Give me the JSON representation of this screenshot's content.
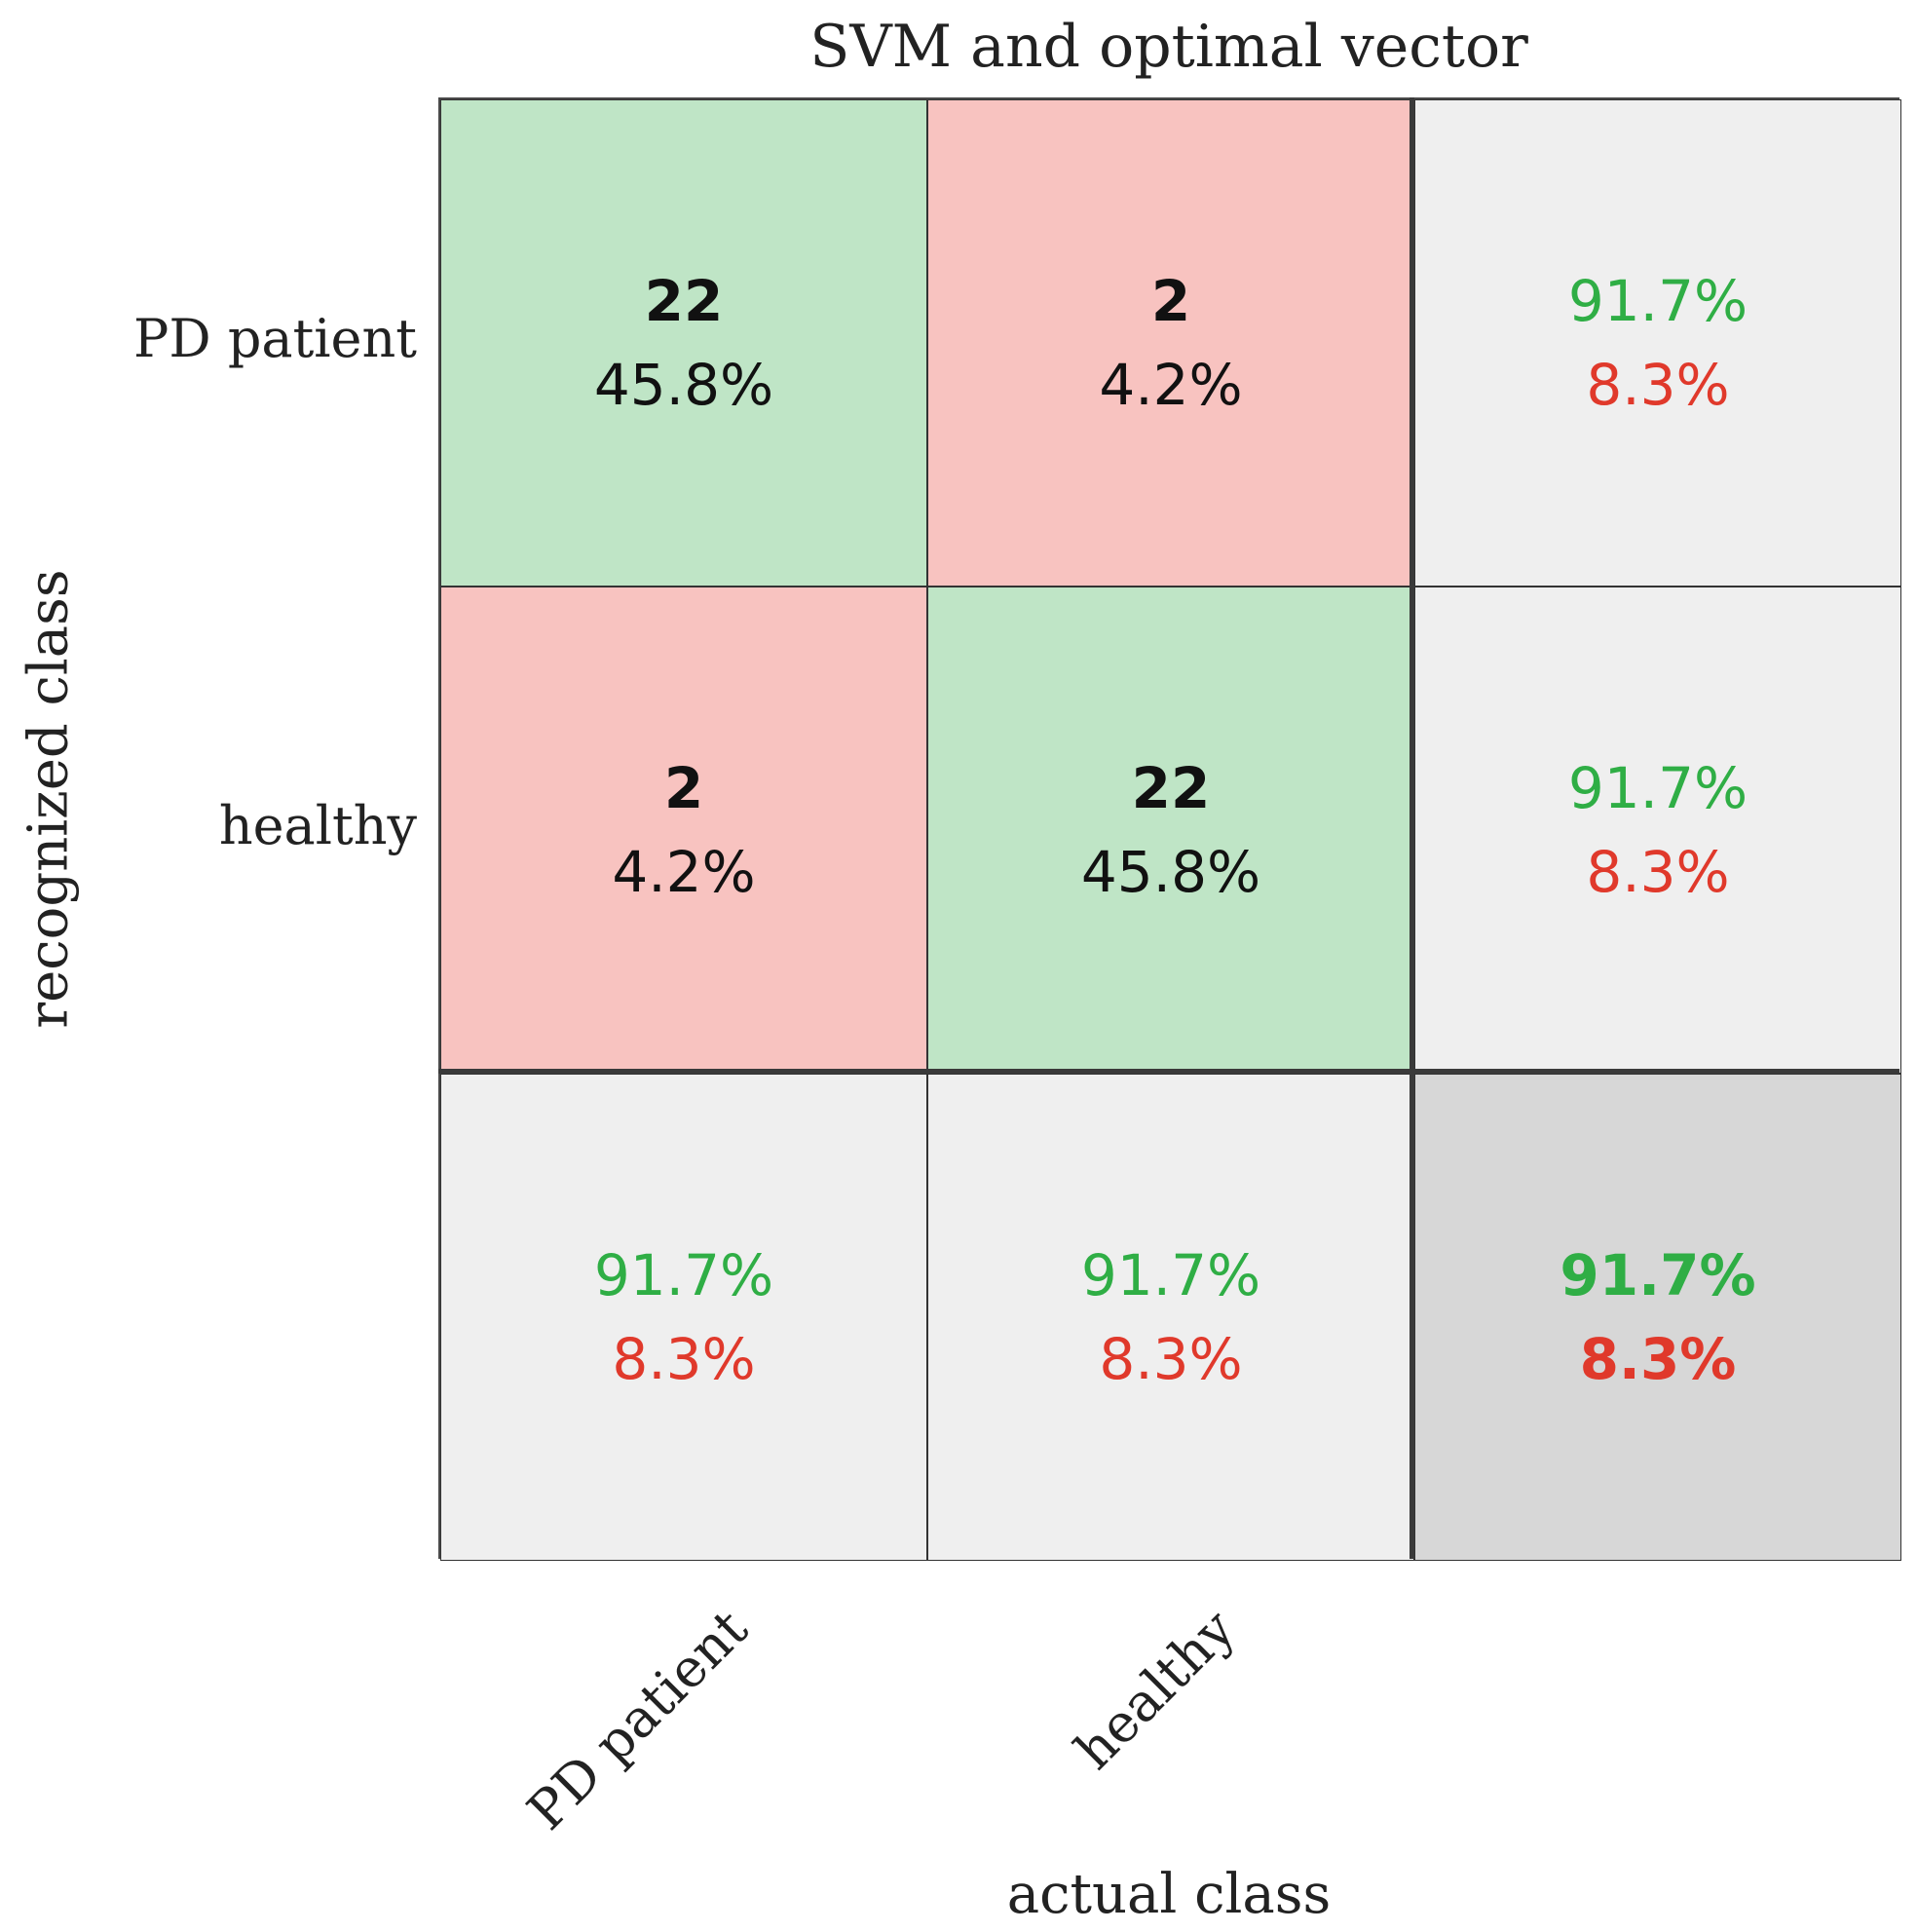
{
  "chart_data": {
    "type": "table",
    "title": "SVM and optimal vector",
    "xlabel": "actual class",
    "ylabel": "recognized class",
    "row_labels": [
      "PD patient",
      "healthy"
    ],
    "col_labels": [
      "PD patient",
      "healthy"
    ],
    "matrix": [
      [
        {
          "count": "22",
          "pct": "45.8%"
        },
        {
          "count": "2",
          "pct": "4.2%"
        }
      ],
      [
        {
          "count": "2",
          "pct": "4.2%"
        },
        {
          "count": "22",
          "pct": "45.8%"
        }
      ]
    ],
    "row_summary": [
      {
        "correct": "91.7%",
        "wrong": "8.3%"
      },
      {
        "correct": "91.7%",
        "wrong": "8.3%"
      }
    ],
    "col_summary": [
      {
        "correct": "91.7%",
        "wrong": "8.3%"
      },
      {
        "correct": "91.7%",
        "wrong": "8.3%"
      }
    ],
    "overall": {
      "correct": "91.7%",
      "wrong": "8.3%"
    },
    "colors": {
      "correct_cell": "#bfe5c6",
      "wrong_cell": "#f8c3c0",
      "summary_cell": "#efefef",
      "overall_cell": "#d7d7d7",
      "correct_text": "#2fae45",
      "wrong_text": "#e0392b"
    }
  }
}
